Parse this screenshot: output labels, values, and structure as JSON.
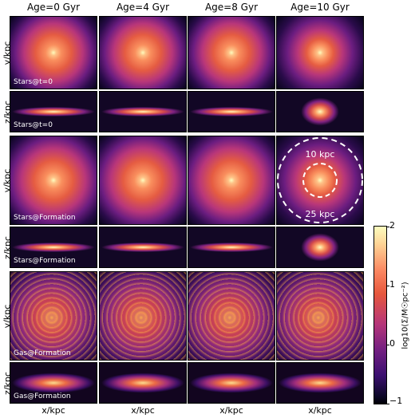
{
  "columns": [
    "Age=0 Gyr",
    "Age=4 Gyr",
    "Age=8 Gyr",
    "Age=10 Gyr"
  ],
  "row_axes": [
    "y/kpc",
    "z/kpc",
    "y/kpc",
    "z/kpc",
    "y/kpc",
    "z/kpc"
  ],
  "row_tags": [
    "Stars@t=0",
    "Stars@t=0",
    "Stars@Formation",
    "Stars@Formation",
    "Gas@Formation",
    "Gas@Formation"
  ],
  "x_axis_label": "x/kpc",
  "colorbar": {
    "label": "log10(Σ/M☉pc⁻²)",
    "ticks": [
      "2",
      "1",
      "0",
      "−1"
    ],
    "range": [
      -1,
      2
    ],
    "colormap": "inferno"
  },
  "annotations": {
    "inner_ring": "10 kpc",
    "outer_ring": "25 kpc"
  },
  "colors": {
    "background": "#000004",
    "bright": "#fcfdbf",
    "ring": "#ffffff"
  }
}
